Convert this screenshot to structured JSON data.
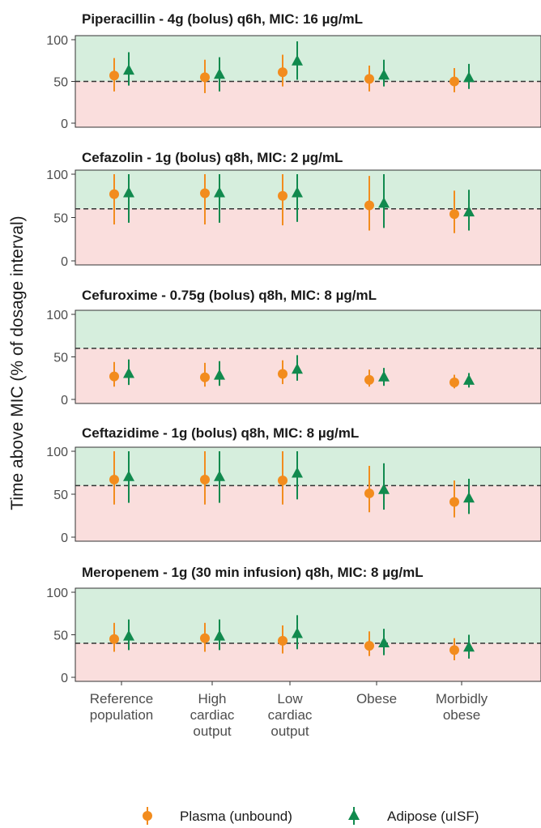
{
  "chart_data": {
    "type": "scatter",
    "ylabel": "Time above MIC (% of dosage interval)",
    "categories": [
      [
        "Reference",
        "population"
      ],
      [
        "High",
        "cardiac",
        "output"
      ],
      [
        "Low",
        "cardiac",
        "output"
      ],
      [
        "Obese"
      ],
      [
        "Morbidly",
        "obese"
      ]
    ],
    "ylim": [
      0,
      100
    ],
    "yticks": [
      0,
      50,
      100
    ],
    "grid": false,
    "legend_position": "bottom",
    "series": [
      {
        "name": "Plasma (unbound)",
        "color": "#f28c1e",
        "marker": "circle"
      },
      {
        "name": "Adipose (uISF)",
        "color": "#118a4e",
        "marker": "triangle"
      }
    ],
    "panels": [
      {
        "title": "Piperacillin - 4g (bolus) q6h, MIC: 16 µg/mL",
        "threshold": 50,
        "plasma": [
          [
            57,
            38,
            78
          ],
          [
            55,
            36,
            76
          ],
          [
            61,
            44,
            82
          ],
          [
            53,
            38,
            69
          ],
          [
            50,
            37,
            66
          ]
        ],
        "adipose": [
          [
            63,
            45,
            85
          ],
          [
            58,
            38,
            79
          ],
          [
            74,
            52,
            98
          ],
          [
            57,
            44,
            76
          ],
          [
            54,
            41,
            71
          ]
        ]
      },
      {
        "title": "Cefazolin - 1g (bolus) q8h, MIC: 2 µg/mL",
        "threshold": 60,
        "plasma": [
          [
            77,
            42,
            100
          ],
          [
            78,
            42,
            100
          ],
          [
            75,
            41,
            100
          ],
          [
            64,
            35,
            98
          ],
          [
            54,
            32,
            81
          ]
        ],
        "adipose": [
          [
            78,
            44,
            100
          ],
          [
            78,
            44,
            100
          ],
          [
            78,
            45,
            100
          ],
          [
            66,
            38,
            100
          ],
          [
            56,
            35,
            82
          ]
        ]
      },
      {
        "title": "Cefuroxime - 0.75g (bolus) q8h, MIC: 8 µg/mL",
        "threshold": 60,
        "plasma": [
          [
            27,
            15,
            44
          ],
          [
            26,
            15,
            43
          ],
          [
            30,
            18,
            46
          ],
          [
            23,
            15,
            35
          ],
          [
            20,
            13,
            29
          ]
        ],
        "adipose": [
          [
            30,
            17,
            47
          ],
          [
            28,
            16,
            45
          ],
          [
            35,
            22,
            52
          ],
          [
            26,
            16,
            37
          ],
          [
            22,
            14,
            31
          ]
        ]
      },
      {
        "title": "Ceftazidime - 1g (bolus) q8h, MIC: 8 µg/mL",
        "threshold": 60,
        "plasma": [
          [
            67,
            38,
            100
          ],
          [
            67,
            38,
            100
          ],
          [
            66,
            38,
            100
          ],
          [
            51,
            29,
            83
          ],
          [
            41,
            23,
            66
          ]
        ],
        "adipose": [
          [
            70,
            40,
            100
          ],
          [
            70,
            40,
            100
          ],
          [
            74,
            44,
            100
          ],
          [
            55,
            32,
            86
          ],
          [
            45,
            27,
            68
          ]
        ]
      },
      {
        "title": "Meropenem - 1g (30 min infusion) q8h, MIC: 8 µg/mL",
        "threshold": 40,
        "plasma": [
          [
            45,
            30,
            64
          ],
          [
            46,
            30,
            64
          ],
          [
            43,
            28,
            61
          ],
          [
            37,
            25,
            54
          ],
          [
            32,
            20,
            46
          ]
        ],
        "adipose": [
          [
            48,
            32,
            68
          ],
          [
            48,
            32,
            68
          ],
          [
            51,
            33,
            73
          ],
          [
            40,
            26,
            57
          ],
          [
            35,
            22,
            50
          ]
        ]
      }
    ],
    "colors": {
      "above_band": "#d6eedd",
      "below_band": "#fadedd",
      "threshold_line": "#333333",
      "panel_border": "#333333"
    }
  }
}
